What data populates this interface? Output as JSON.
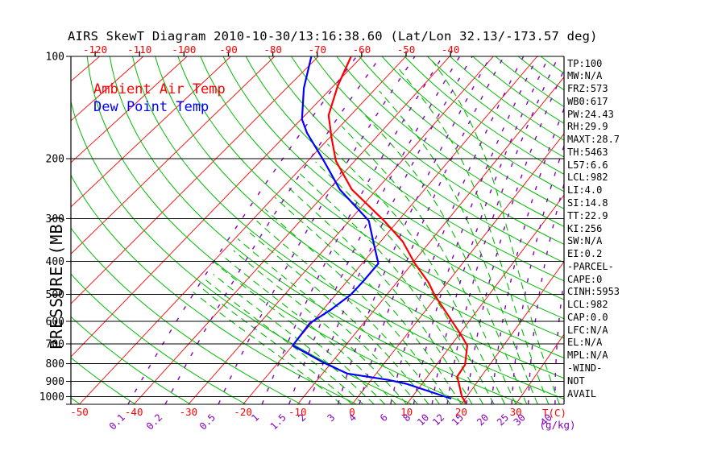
{
  "title": "AIRS SkewT Diagram 2010-10-30/13:16:38.60 (Lat/Lon 32.13/-173.57 deg)",
  "legend": {
    "ambient": "Ambient Air Temp",
    "dewpoint": "Dew Point Temp"
  },
  "colors": {
    "ambient": "#ff0000",
    "dewpoint": "#0000ff",
    "isotherm": "#ff0000",
    "dry_adiabat": "#00bb00",
    "moist_adiabat": "#00bb00",
    "mixing_ratio": "#8800bb",
    "grid": "#000000",
    "temp_tick": "#ff0000"
  },
  "stats_panel": {
    "lines": [
      "TP:100",
      "MW:N/A",
      "FRZ:573",
      "WB0:617",
      "PW:24.43",
      "RH:29.9",
      "MAXT:28.7",
      "TH:5463",
      "L57:6.6",
      "LCL:982",
      "LI:4.0",
      "SI:14.8",
      "TT:22.9",
      "KI:256",
      "SW:N/A",
      "EI:0.2",
      "-PARCEL-",
      "CAPE:0",
      "CINH:5953",
      "LCL:982",
      "CAP:0.0",
      "LFC:N/A",
      "EL:N/A",
      "MPL:N/A",
      "-WIND-",
      "NOT",
      "AVAIL"
    ]
  },
  "chart_data": {
    "type": "line",
    "variant": "skew-t-log-p",
    "grid": "on",
    "pressure_axis": {
      "label": "PRESSURE (MB)",
      "ticks": [
        100,
        200,
        300,
        400,
        500,
        600,
        700,
        800,
        900,
        1000
      ],
      "range": [
        100,
        1052
      ]
    },
    "temperature_axis": {
      "label": "T(C)",
      "bottom_ticks": [
        -50,
        -40,
        -30,
        -20,
        -10,
        0,
        10,
        20,
        30
      ],
      "top_ticks": [
        -120,
        -110,
        -100,
        -90,
        -80,
        -70,
        -60,
        -50,
        -40
      ]
    },
    "mixing_ratio_axis": {
      "label": "(g/kg)",
      "ticks": [
        0.1,
        0.2,
        0.5,
        1,
        1.5,
        2,
        3,
        4,
        6,
        8,
        10,
        12,
        15,
        20,
        25,
        30,
        40
      ]
    },
    "isotherms_C": {
      "min": -150,
      "max": 30,
      "step": 10
    },
    "dry_adiabats_theta_K": {
      "min": 210,
      "max": 510,
      "step": 10
    },
    "moist_adiabats_surface_T_C": {
      "min": -2,
      "max": 38,
      "step": 2,
      "stop_below_T_C": -50
    },
    "series": [
      {
        "name": "Ambient Air Temp",
        "color": "#ff0000",
        "points_p_T": [
          [
            100,
            -60.0
          ],
          [
            122,
            -57.4
          ],
          [
            149,
            -54.0
          ],
          [
            174,
            -49.5
          ],
          [
            203,
            -44.8
          ],
          [
            246,
            -37.0
          ],
          [
            304,
            -25.7
          ],
          [
            350,
            -18.7
          ],
          [
            406,
            -12.7
          ],
          [
            461,
            -7.0
          ],
          [
            502,
            -3.7
          ],
          [
            557,
            0.8
          ],
          [
            608,
            4.6
          ],
          [
            656,
            7.9
          ],
          [
            707,
            11.0
          ],
          [
            805,
            13.9
          ],
          [
            872,
            14.5
          ],
          [
            996,
            18.7
          ],
          [
            1043,
            20.6
          ]
        ]
      },
      {
        "name": "Dew Point Temp",
        "color": "#0000ff",
        "points_p_T": [
          [
            100,
            -67.3
          ],
          [
            124,
            -63.2
          ],
          [
            153,
            -58.2
          ],
          [
            168,
            -54.9
          ],
          [
            203,
            -47.0
          ],
          [
            246,
            -39.2
          ],
          [
            304,
            -28.5
          ],
          [
            350,
            -24.1
          ],
          [
            406,
            -19.4
          ],
          [
            461,
            -19.1
          ],
          [
            502,
            -19.1
          ],
          [
            557,
            -20.2
          ],
          [
            608,
            -21.7
          ],
          [
            707,
            -21.0
          ],
          [
            791,
            -12.7
          ],
          [
            855,
            -6.2
          ],
          [
            892,
            2.3
          ],
          [
            916,
            6.4
          ],
          [
            1013,
            17.2
          ]
        ]
      }
    ]
  }
}
